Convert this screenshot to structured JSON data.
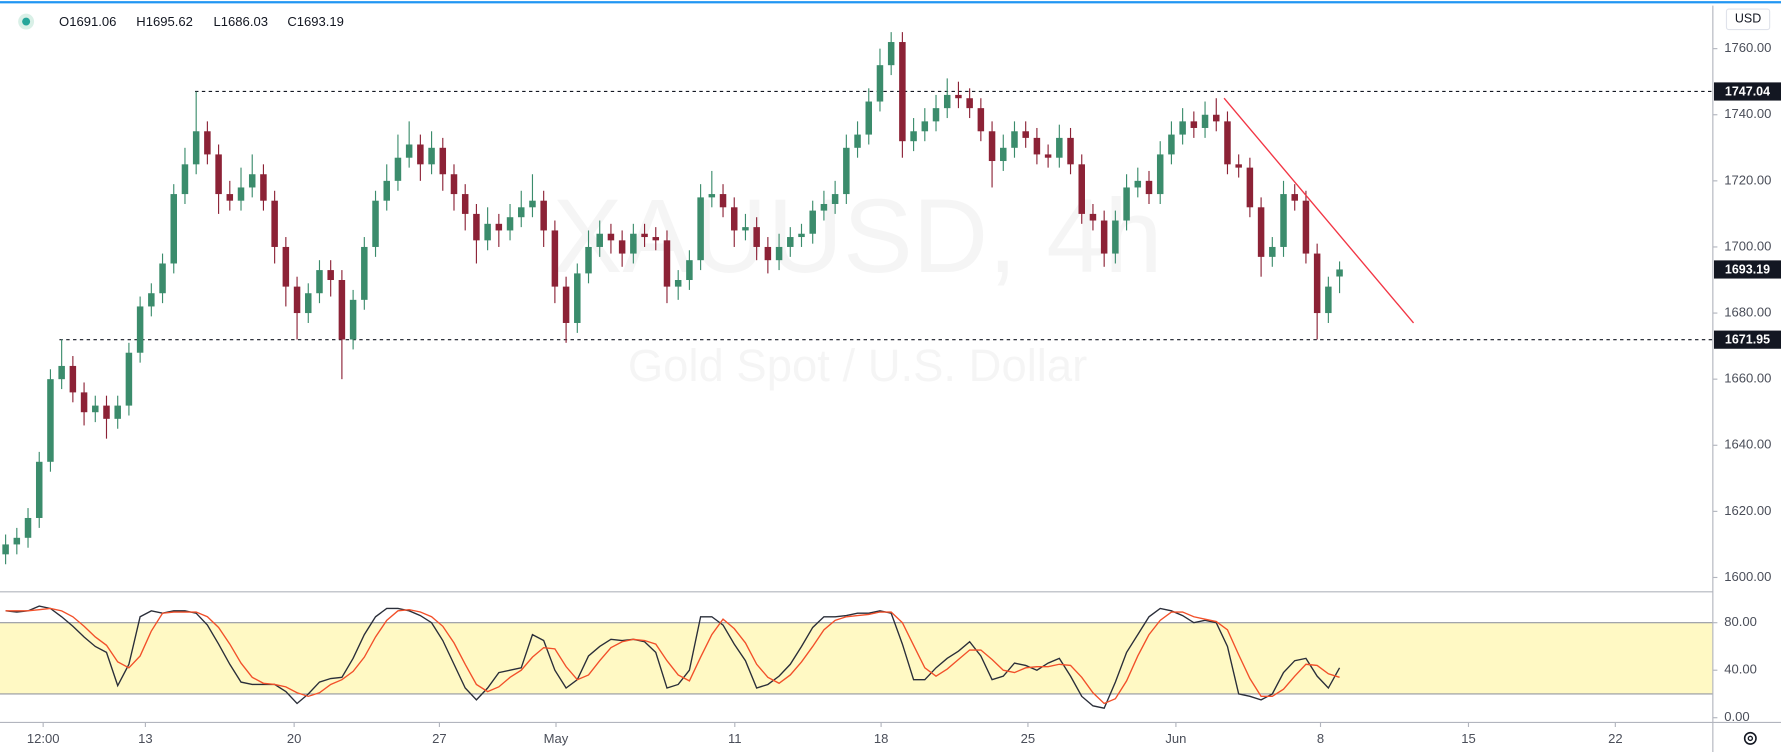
{
  "chart_data": [
    {
      "type": "candlestick",
      "legend": [
        "O1691.06",
        "H1695.62",
        "L1686.03",
        "C1693.19"
      ],
      "watermark": "XAUUSD, 4h",
      "subtitle": "Gold Spot / U.S. Dollar",
      "currency": "USD",
      "up_color": "#3b8c6c",
      "down_color": "#8c2236",
      "xlim": [
        -0.5,
        152.3
      ],
      "xticks": [
        {
          "value": 3.35,
          "label": "12:00"
        },
        {
          "value": 12.47,
          "label": "13"
        },
        {
          "value": 25.74,
          "label": "20"
        },
        {
          "value": 38.7,
          "label": "27"
        },
        {
          "value": 49.1,
          "label": "May"
        },
        {
          "value": 65.05,
          "label": "11"
        },
        {
          "value": 78.1,
          "label": "18"
        },
        {
          "value": 91.2,
          "label": "25"
        },
        {
          "value": 104.4,
          "label": "Jun"
        },
        {
          "value": 117.3,
          "label": "8"
        },
        {
          "value": 130.5,
          "label": "15"
        },
        {
          "value": 143.6,
          "label": "22"
        }
      ],
      "ylim": [
        1596,
        1773
      ],
      "yticks": [
        {
          "value": 1600,
          "label": "1600.00"
        },
        {
          "value": 1620,
          "label": "1620.00"
        },
        {
          "value": 1640,
          "label": "1640.00"
        },
        {
          "value": 1660,
          "label": "1660.00"
        },
        {
          "value": 1680,
          "label": "1680.00"
        },
        {
          "value": 1700,
          "label": "1700.00"
        },
        {
          "value": 1720,
          "label": "1720.00"
        },
        {
          "value": 1740,
          "label": "1740.00"
        },
        {
          "value": 1760,
          "label": "1760.00"
        }
      ],
      "levels": [
        {
          "value": 1747.04,
          "start": 16.9
        },
        {
          "value": 1671.95,
          "start": 4.8
        }
      ],
      "trendline": {
        "start": [
          108.7,
          1745
        ],
        "end": [
          125.6,
          1677
        ],
        "color": "#f23645"
      },
      "ohlc": [
        [
          1607,
          1613,
          1604,
          1610
        ],
        [
          1610,
          1615,
          1607,
          1612
        ],
        [
          1612,
          1621,
          1609,
          1618
        ],
        [
          1618,
          1638,
          1615,
          1635
        ],
        [
          1635,
          1663,
          1632,
          1660
        ],
        [
          1660,
          1672,
          1657,
          1664
        ],
        [
          1664,
          1667,
          1653,
          1656
        ],
        [
          1656,
          1659,
          1646,
          1650
        ],
        [
          1650,
          1655,
          1647,
          1652
        ],
        [
          1652,
          1655,
          1642,
          1648
        ],
        [
          1648,
          1655,
          1645,
          1652
        ],
        [
          1652,
          1671,
          1649,
          1668
        ],
        [
          1668,
          1685,
          1665,
          1682
        ],
        [
          1682,
          1689,
          1679,
          1686
        ],
        [
          1686,
          1698,
          1683,
          1695
        ],
        [
          1695,
          1719,
          1692,
          1716
        ],
        [
          1716,
          1730,
          1713,
          1725
        ],
        [
          1725,
          1747,
          1722,
          1735
        ],
        [
          1735,
          1738,
          1725,
          1728
        ],
        [
          1728,
          1731,
          1710,
          1716
        ],
        [
          1716,
          1720,
          1711,
          1714
        ],
        [
          1714,
          1724,
          1711,
          1718
        ],
        [
          1718,
          1728,
          1715,
          1722
        ],
        [
          1722,
          1725,
          1711,
          1714
        ],
        [
          1714,
          1717,
          1695,
          1700
        ],
        [
          1700,
          1703,
          1682,
          1688
        ],
        [
          1688,
          1691,
          1672,
          1680
        ],
        [
          1680,
          1689,
          1677,
          1686
        ],
        [
          1686,
          1696,
          1683,
          1693
        ],
        [
          1693,
          1696,
          1685,
          1690
        ],
        [
          1690,
          1693,
          1660,
          1672
        ],
        [
          1672,
          1687,
          1669,
          1684
        ],
        [
          1684,
          1703,
          1681,
          1700
        ],
        [
          1700,
          1717,
          1697,
          1714
        ],
        [
          1714,
          1725,
          1711,
          1720
        ],
        [
          1720,
          1734,
          1717,
          1727
        ],
        [
          1727,
          1738,
          1724,
          1731
        ],
        [
          1731,
          1734,
          1720,
          1725
        ],
        [
          1725,
          1735,
          1722,
          1730
        ],
        [
          1730,
          1733,
          1717,
          1722
        ],
        [
          1722,
          1725,
          1711,
          1716
        ],
        [
          1716,
          1719,
          1705,
          1710
        ],
        [
          1710,
          1713,
          1695,
          1702
        ],
        [
          1702,
          1712,
          1699,
          1707
        ],
        [
          1707,
          1710,
          1700,
          1705
        ],
        [
          1705,
          1713,
          1702,
          1709
        ],
        [
          1709,
          1717,
          1706,
          1712
        ],
        [
          1712,
          1722,
          1709,
          1714
        ],
        [
          1714,
          1717,
          1700,
          1705
        ],
        [
          1705,
          1708,
          1683,
          1688
        ],
        [
          1688,
          1691,
          1671,
          1677
        ],
        [
          1677,
          1695,
          1674,
          1692
        ],
        [
          1692,
          1705,
          1689,
          1700
        ],
        [
          1700,
          1708,
          1697,
          1704
        ],
        [
          1704,
          1707,
          1698,
          1702
        ],
        [
          1702,
          1705,
          1694,
          1698
        ],
        [
          1698,
          1707,
          1695,
          1704
        ],
        [
          1704,
          1707,
          1700,
          1703
        ],
        [
          1703,
          1706,
          1699,
          1702
        ],
        [
          1702,
          1705,
          1683,
          1688
        ],
        [
          1688,
          1693,
          1684,
          1690
        ],
        [
          1690,
          1699,
          1687,
          1696
        ],
        [
          1696,
          1719,
          1693,
          1715
        ],
        [
          1715,
          1723,
          1712,
          1716
        ],
        [
          1716,
          1719,
          1709,
          1712
        ],
        [
          1712,
          1715,
          1700,
          1705
        ],
        [
          1705,
          1710,
          1702,
          1706
        ],
        [
          1706,
          1709,
          1696,
          1700
        ],
        [
          1700,
          1703,
          1692,
          1696
        ],
        [
          1696,
          1704,
          1693,
          1700
        ],
        [
          1700,
          1706,
          1697,
          1703
        ],
        [
          1703,
          1707,
          1700,
          1704
        ],
        [
          1704,
          1714,
          1701,
          1711
        ],
        [
          1711,
          1717,
          1708,
          1713
        ],
        [
          1713,
          1720,
          1710,
          1716
        ],
        [
          1716,
          1734,
          1713,
          1730
        ],
        [
          1730,
          1738,
          1727,
          1734
        ],
        [
          1734,
          1748,
          1731,
          1744
        ],
        [
          1744,
          1760,
          1741,
          1755
        ],
        [
          1755,
          1765,
          1752,
          1762
        ],
        [
          1762,
          1765,
          1727,
          1732
        ],
        [
          1732,
          1739,
          1729,
          1735
        ],
        [
          1735,
          1742,
          1732,
          1738
        ],
        [
          1738,
          1746,
          1735,
          1742
        ],
        [
          1742,
          1751,
          1739,
          1746
        ],
        [
          1746,
          1750,
          1742,
          1745
        ],
        [
          1745,
          1748,
          1739,
          1742
        ],
        [
          1742,
          1745,
          1732,
          1735
        ],
        [
          1735,
          1738,
          1718,
          1726
        ],
        [
          1726,
          1734,
          1723,
          1730
        ],
        [
          1730,
          1738,
          1727,
          1735
        ],
        [
          1735,
          1738,
          1730,
          1733
        ],
        [
          1733,
          1736,
          1725,
          1728
        ],
        [
          1728,
          1731,
          1724,
          1727
        ],
        [
          1727,
          1737,
          1724,
          1733
        ],
        [
          1733,
          1736,
          1722,
          1725
        ],
        [
          1725,
          1728,
          1707,
          1710
        ],
        [
          1710,
          1713,
          1705,
          1708
        ],
        [
          1708,
          1711,
          1694,
          1698
        ],
        [
          1698,
          1711,
          1695,
          1708
        ],
        [
          1708,
          1722,
          1705,
          1718
        ],
        [
          1718,
          1724,
          1715,
          1720
        ],
        [
          1720,
          1723,
          1713,
          1716
        ],
        [
          1716,
          1732,
          1713,
          1728
        ],
        [
          1728,
          1738,
          1725,
          1734
        ],
        [
          1734,
          1742,
          1731,
          1738
        ],
        [
          1738,
          1741,
          1733,
          1736
        ],
        [
          1736,
          1744,
          1733,
          1740
        ],
        [
          1740,
          1745,
          1735,
          1738
        ],
        [
          1738,
          1741,
          1722,
          1725
        ],
        [
          1725,
          1728,
          1721,
          1724
        ],
        [
          1724,
          1727,
          1709,
          1712
        ],
        [
          1712,
          1715,
          1691,
          1697
        ],
        [
          1697,
          1703,
          1694,
          1700
        ],
        [
          1700,
          1720,
          1697,
          1716
        ],
        [
          1716,
          1719,
          1711,
          1714
        ],
        [
          1714,
          1717,
          1695,
          1698
        ],
        [
          1698,
          1701,
          1672,
          1680
        ],
        [
          1680,
          1691,
          1677,
          1688
        ],
        [
          1691.06,
          1695.62,
          1686.03,
          1693.19
        ]
      ]
    },
    {
      "type": "line",
      "xlim": [
        -0.5,
        152.3
      ],
      "ylim": [
        -4,
        106
      ],
      "yticks": [
        {
          "value": 0,
          "label": "0.00"
        },
        {
          "value": 40,
          "label": "40.00"
        },
        {
          "value": 80,
          "label": "80.00"
        }
      ],
      "band": [
        20,
        80
      ],
      "band_color": "#fff9c4",
      "series": [
        {
          "color": "#2a2e39",
          "values": [
            90,
            89,
            90,
            94,
            92,
            85,
            77,
            68,
            60,
            55,
            27,
            45,
            85,
            90,
            88,
            90,
            90,
            88,
            78,
            62,
            45,
            30,
            28,
            28,
            28,
            22,
            12,
            20,
            30,
            33,
            34,
            50,
            70,
            85,
            92,
            92,
            90,
            86,
            80,
            65,
            45,
            25,
            15,
            25,
            38,
            40,
            42,
            70,
            65,
            40,
            25,
            32,
            52,
            60,
            66,
            65,
            66,
            64,
            55,
            25,
            28,
            40,
            85,
            85,
            78,
            62,
            48,
            25,
            28,
            35,
            45,
            60,
            76,
            85,
            85,
            86,
            88,
            88,
            90,
            88,
            62,
            32,
            32,
            42,
            50,
            56,
            64,
            52,
            32,
            35,
            46,
            44,
            40,
            46,
            50,
            35,
            18,
            10,
            8,
            30,
            55,
            70,
            85,
            92,
            90,
            86,
            80,
            82,
            80,
            60,
            20,
            18,
            15,
            20,
            38,
            48,
            50,
            35,
            25,
            42
          ]
        },
        {
          "color": "#f2502a",
          "values": [
            90,
            90,
            90,
            91,
            92,
            90,
            85,
            77,
            68,
            61,
            47,
            42,
            52,
            73,
            88,
            89,
            89,
            89,
            85,
            76,
            62,
            46,
            34,
            29,
            28,
            26,
            21,
            18,
            21,
            28,
            32,
            39,
            51,
            68,
            82,
            90,
            91,
            89,
            85,
            77,
            63,
            45,
            28,
            22,
            26,
            34,
            40,
            51,
            59,
            58,
            43,
            32,
            36,
            48,
            59,
            64,
            66,
            65,
            62,
            48,
            36,
            31,
            51,
            70,
            83,
            75,
            63,
            45,
            34,
            29,
            36,
            47,
            60,
            74,
            82,
            85,
            86,
            87,
            89,
            89,
            80,
            61,
            42,
            35,
            41,
            49,
            57,
            57,
            49,
            40,
            38,
            42,
            43,
            43,
            45,
            44,
            34,
            21,
            12,
            16,
            31,
            52,
            70,
            82,
            89,
            89,
            85,
            83,
            81,
            74,
            53,
            33,
            18,
            18,
            24,
            35,
            45,
            44,
            37,
            34
          ]
        }
      ]
    }
  ]
}
